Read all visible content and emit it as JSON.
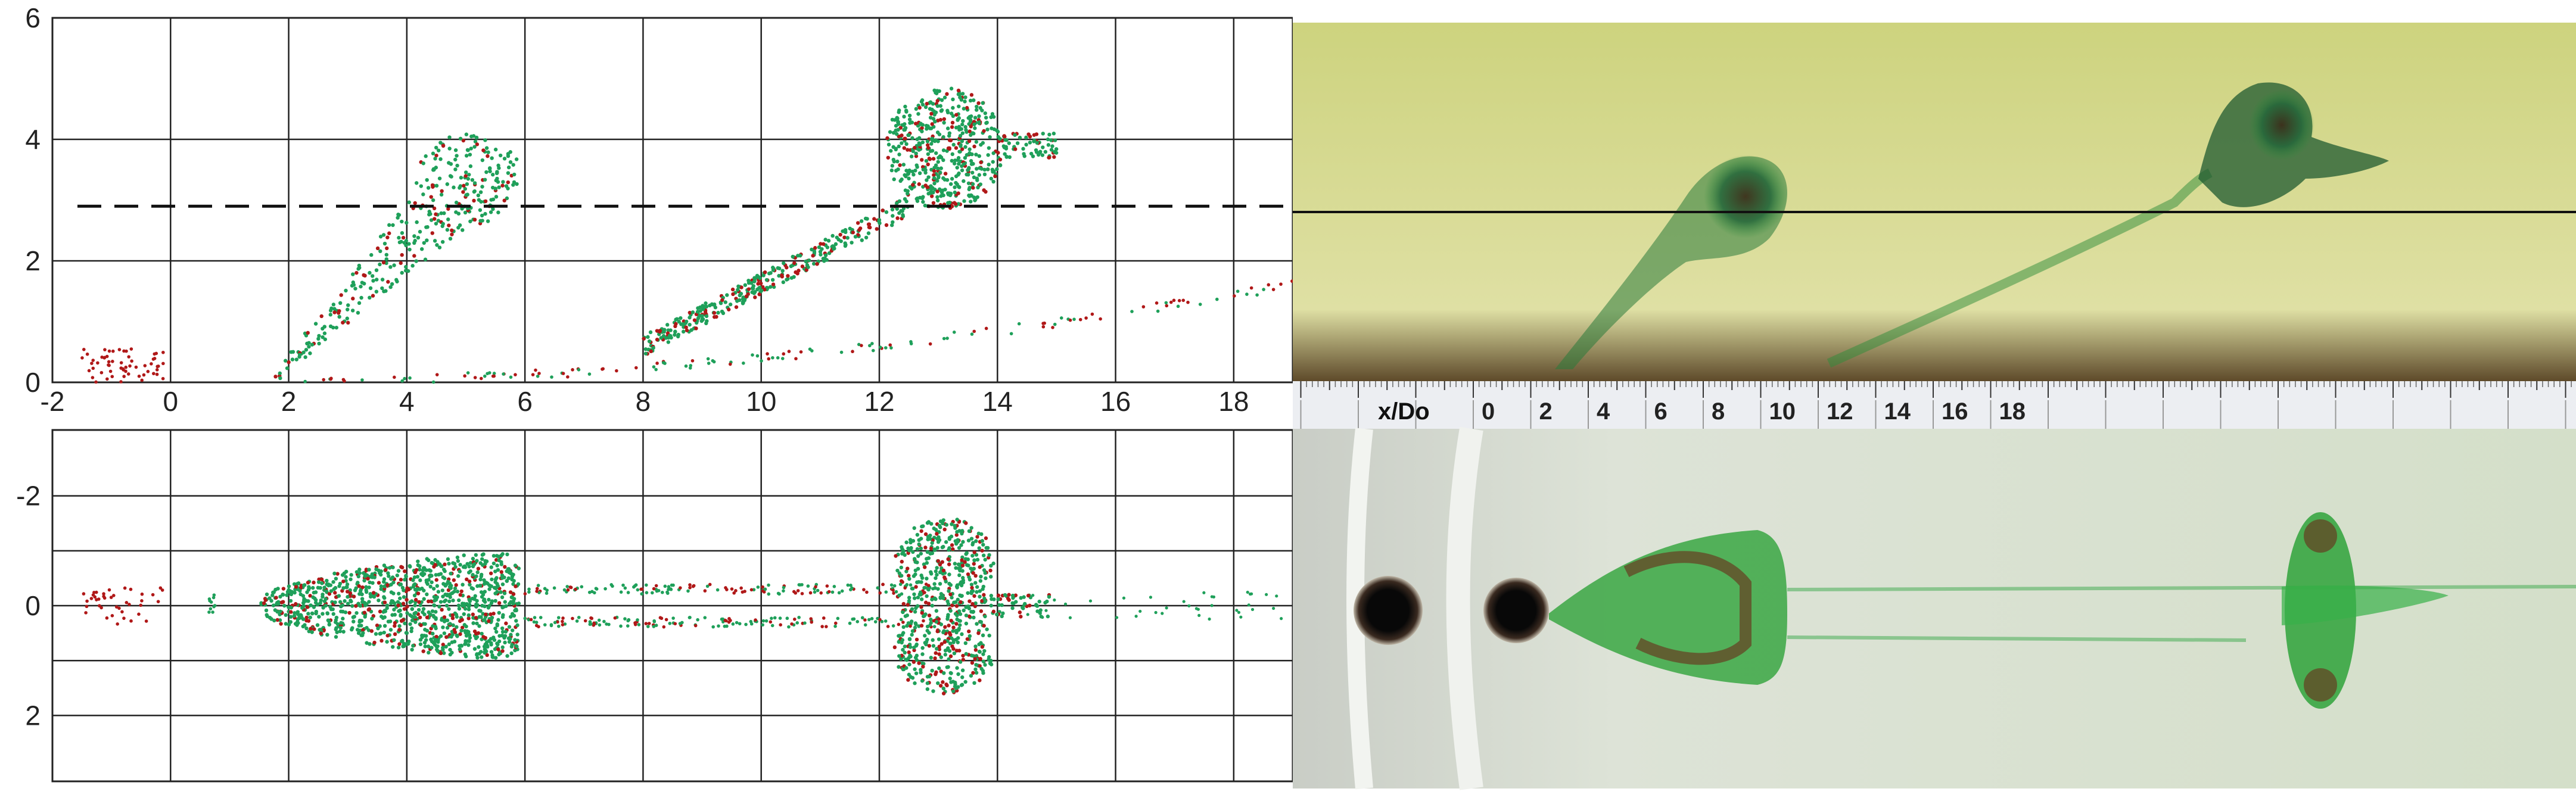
{
  "figure": {
    "side_view_plot": {
      "x_tick_labels": [
        "-2",
        "0",
        "2",
        "4",
        "6",
        "8",
        "10",
        "12",
        "14",
        "16",
        "18"
      ],
      "y_tick_labels": [
        "0",
        "2",
        "4",
        "6"
      ],
      "xlim": [
        -2,
        19
      ],
      "ylim": [
        0,
        6
      ],
      "dashed_line_y": 2.9,
      "grid": true
    },
    "top_view_plot": {
      "y_tick_labels": [
        "-2",
        "0",
        "2"
      ],
      "ylim": [
        -3.2,
        3.2
      ],
      "grid": true
    },
    "ruler": {
      "label": "x/Do",
      "tick_labels": [
        "0",
        "2",
        "4",
        "6",
        "8",
        "10",
        "12",
        "14",
        "16",
        "18"
      ]
    },
    "colors": {
      "green_particles": "#1fa05a",
      "red_particles": "#b01818",
      "photo_background_top": "#d6d98a",
      "photo_background_bottom": "#d9e2d2",
      "dye": "#2e8b3a"
    }
  },
  "chart_data": [
    {
      "type": "scatter",
      "xlabel": "",
      "ylabel": "",
      "xlim": [
        -2,
        19
      ],
      "ylim": [
        0,
        6
      ],
      "grid": true,
      "series": [
        {
          "clusters": [
            {
              "x": [
                1.6,
                2.2,
                3.0,
                3.8,
                4.4,
                5.0,
                5.5,
                5.7,
                5.4,
                4.8,
                4.0,
                3.0,
                2.0
              ],
              "y": [
                0.0,
                0.4,
                1.0,
                1.9,
                2.7,
                3.4,
                3.9,
                3.5,
                2.6,
                1.9,
                1.4,
                0.8,
                0.2
              ]
            },
            {
              "x": [
                9.0,
                10.5,
                11.5,
                12.2,
                12.6,
                13.2,
                13.9,
                14.5,
                15.0,
                14.0,
                13.0,
                12.2
              ],
              "y": [
                0.8,
                1.4,
                2.0,
                2.5,
                3.6,
                4.7,
                4.4,
                4.0,
                3.9,
                2.8,
                2.6,
                4.2
              ]
            },
            {
              "x": [
                2,
                4,
                6,
                8,
                10,
                12,
                14,
                16,
                18,
                19
              ],
              "y": [
                0.0,
                0.02,
                0.12,
                0.25,
                0.42,
                0.6,
                0.85,
                1.1,
                1.45,
                1.7
              ]
            }
          ]
        }
      ]
    },
    {
      "type": "scatter",
      "xlabel": "",
      "ylabel": "",
      "xlim": [
        -2,
        19
      ],
      "ylim": [
        -3.2,
        3.2
      ],
      "grid": true,
      "series": [
        {
          "clusters": [
            {
              "x": [
                1.5,
                2.5,
                3.5,
                4.5,
                5.5,
                5.8
              ],
              "y_half_width": [
                0.05,
                0.45,
                0.8,
                0.95,
                0.95,
                0.9
              ]
            },
            {
              "x": [
                12.2,
                12.8,
                13.5,
                14.0
              ],
              "y_half_width": [
                0.8,
                1.5,
                1.6,
                1.2
              ]
            }
          ]
        }
      ]
    }
  ]
}
